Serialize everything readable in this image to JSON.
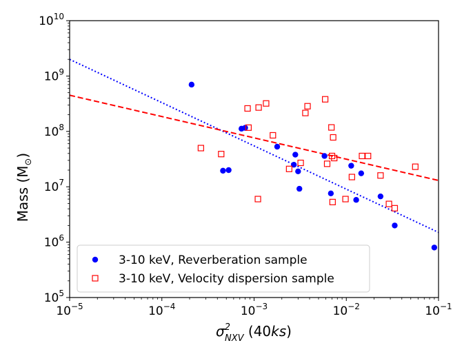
{
  "chart_data": {
    "type": "scatter",
    "x_scale": "log",
    "y_scale": "log",
    "xlim": [
      1e-05,
      0.1
    ],
    "ylim": [
      100000.0,
      10000000000.0
    ],
    "xlabel": {
      "sigma": "σ",
      "sup": "2",
      "sub": "NXV",
      "paren_open": " (40",
      "unit": "ks",
      "paren_close": ")"
    },
    "ylabel": {
      "prefix": "Mass (M",
      "sun": "⊙",
      "suffix": ")"
    },
    "x_ticks": [
      {
        "value": 1e-05,
        "base": "10",
        "exp": "−5"
      },
      {
        "value": 0.0001,
        "base": "10",
        "exp": "−4"
      },
      {
        "value": 0.001,
        "base": "10",
        "exp": "−3"
      },
      {
        "value": 0.01,
        "base": "10",
        "exp": "−2"
      },
      {
        "value": 0.1,
        "base": "10",
        "exp": "−1"
      }
    ],
    "y_ticks": [
      {
        "value": 100000.0,
        "base": "10",
        "exp": "5"
      },
      {
        "value": 1000000.0,
        "base": "10",
        "exp": "6"
      },
      {
        "value": 10000000.0,
        "base": "10",
        "exp": "7"
      },
      {
        "value": 100000000.0,
        "base": "10",
        "exp": "8"
      },
      {
        "value": 1000000000.0,
        "base": "10",
        "exp": "9"
      },
      {
        "value": 10000000000.0,
        "base": "10",
        "exp": "10"
      }
    ],
    "series": [
      {
        "name": "3-10 keV, Reverberation sample",
        "marker": "filled-circle",
        "color": "#0000ff",
        "points": [
          [
            0.00021,
            700000000.0
          ],
          [
            0.00046,
            19500000.0
          ],
          [
            0.00053,
            20000000.0
          ],
          [
            0.00073,
            112000000.0
          ],
          [
            0.0008,
            116000000.0
          ],
          [
            0.00178,
            53000000.0
          ],
          [
            0.0027,
            25000000.0
          ],
          [
            0.0028,
            38000000.0
          ],
          [
            0.003,
            19000000.0
          ],
          [
            0.0031,
            9200000.0
          ],
          [
            0.0058,
            36000000.0
          ],
          [
            0.0068,
            7600000.0
          ],
          [
            0.0113,
            24000000.0
          ],
          [
            0.0128,
            5800000.0
          ],
          [
            0.0145,
            17500000.0
          ],
          [
            0.0235,
            6700000.0
          ],
          [
            0.0335,
            2000000.0
          ],
          [
            0.09,
            800000.0
          ]
        ]
      },
      {
        "name": "3-10 keV, Velocity dispersion sample",
        "marker": "open-square",
        "color": "#ff0000",
        "points": [
          [
            0.000265,
            50000000.0
          ],
          [
            0.00044,
            39000000.0
          ],
          [
            0.00085,
            260000000.0
          ],
          [
            0.00087,
            117000000.0
          ],
          [
            0.0011,
            6000000.0
          ],
          [
            0.00112,
            270000000.0
          ],
          [
            0.00135,
            320000000.0
          ],
          [
            0.0016,
            85000000.0
          ],
          [
            0.0024,
            21000000.0
          ],
          [
            0.0032,
            27000000.0
          ],
          [
            0.0036,
            215000000.0
          ],
          [
            0.0038,
            285000000.0
          ],
          [
            0.0059,
            380000000.0
          ],
          [
            0.0062,
            26000000.0
          ],
          [
            0.0069,
            118000000.0
          ],
          [
            0.007,
            36000000.0
          ],
          [
            0.0071,
            5300000.0
          ],
          [
            0.0072,
            78000000.0
          ],
          [
            0.0074,
            33000000.0
          ],
          [
            0.0098,
            6000000.0
          ],
          [
            0.0115,
            15000000.0
          ],
          [
            0.0148,
            36000000.0
          ],
          [
            0.0172,
            36000000.0
          ],
          [
            0.0235,
            16000000.0
          ],
          [
            0.029,
            4900000.0
          ],
          [
            0.0335,
            4100000.0
          ],
          [
            0.056,
            23000000.0
          ]
        ]
      }
    ],
    "fit_lines": [
      {
        "name": "reverberation fit",
        "style": "dotted",
        "color": "#0000ff",
        "from": [
          1e-05,
          2000000000.0
        ],
        "to": [
          0.1,
          1500000.0
        ]
      },
      {
        "name": "velocity dispersion fit",
        "style": "dashed",
        "color": "#ff0000",
        "from": [
          1e-05,
          450000000.0
        ],
        "to": [
          0.1,
          13000000.0
        ]
      }
    ],
    "legend": {
      "position": "bottom-left",
      "entries": [
        "3-10 keV, Reverberation sample",
        "3-10 keV, Velocity dispersion sample"
      ]
    }
  }
}
